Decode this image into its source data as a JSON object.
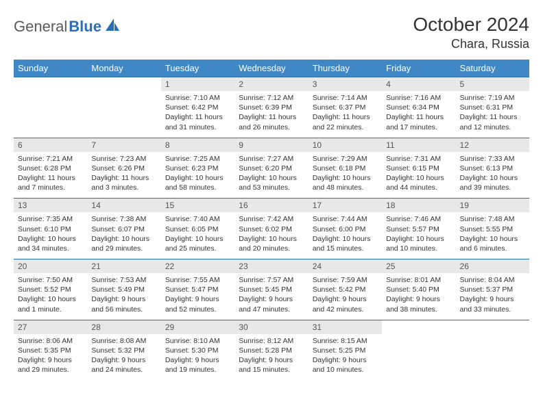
{
  "logo": {
    "part1": "General",
    "part2": "Blue"
  },
  "title": "October 2024",
  "location": "Chara, Russia",
  "colors": {
    "header_bg": "#3f88c5",
    "header_fg": "#ffffff",
    "daynum_bg": "#e8e8e8",
    "daynum_fg": "#555555",
    "border": "#2a6fb5",
    "logo_gray": "#5a5a5a",
    "logo_blue": "#2a6fb5"
  },
  "day_names": [
    "Sunday",
    "Monday",
    "Tuesday",
    "Wednesday",
    "Thursday",
    "Friday",
    "Saturday"
  ],
  "weeks": [
    [
      {
        "n": "",
        "sr": "",
        "ss": "",
        "dl": ""
      },
      {
        "n": "",
        "sr": "",
        "ss": "",
        "dl": ""
      },
      {
        "n": "1",
        "sr": "Sunrise: 7:10 AM",
        "ss": "Sunset: 6:42 PM",
        "dl": "Daylight: 11 hours and 31 minutes."
      },
      {
        "n": "2",
        "sr": "Sunrise: 7:12 AM",
        "ss": "Sunset: 6:39 PM",
        "dl": "Daylight: 11 hours and 26 minutes."
      },
      {
        "n": "3",
        "sr": "Sunrise: 7:14 AM",
        "ss": "Sunset: 6:37 PM",
        "dl": "Daylight: 11 hours and 22 minutes."
      },
      {
        "n": "4",
        "sr": "Sunrise: 7:16 AM",
        "ss": "Sunset: 6:34 PM",
        "dl": "Daylight: 11 hours and 17 minutes."
      },
      {
        "n": "5",
        "sr": "Sunrise: 7:19 AM",
        "ss": "Sunset: 6:31 PM",
        "dl": "Daylight: 11 hours and 12 minutes."
      }
    ],
    [
      {
        "n": "6",
        "sr": "Sunrise: 7:21 AM",
        "ss": "Sunset: 6:28 PM",
        "dl": "Daylight: 11 hours and 7 minutes."
      },
      {
        "n": "7",
        "sr": "Sunrise: 7:23 AM",
        "ss": "Sunset: 6:26 PM",
        "dl": "Daylight: 11 hours and 3 minutes."
      },
      {
        "n": "8",
        "sr": "Sunrise: 7:25 AM",
        "ss": "Sunset: 6:23 PM",
        "dl": "Daylight: 10 hours and 58 minutes."
      },
      {
        "n": "9",
        "sr": "Sunrise: 7:27 AM",
        "ss": "Sunset: 6:20 PM",
        "dl": "Daylight: 10 hours and 53 minutes."
      },
      {
        "n": "10",
        "sr": "Sunrise: 7:29 AM",
        "ss": "Sunset: 6:18 PM",
        "dl": "Daylight: 10 hours and 48 minutes."
      },
      {
        "n": "11",
        "sr": "Sunrise: 7:31 AM",
        "ss": "Sunset: 6:15 PM",
        "dl": "Daylight: 10 hours and 44 minutes."
      },
      {
        "n": "12",
        "sr": "Sunrise: 7:33 AM",
        "ss": "Sunset: 6:13 PM",
        "dl": "Daylight: 10 hours and 39 minutes."
      }
    ],
    [
      {
        "n": "13",
        "sr": "Sunrise: 7:35 AM",
        "ss": "Sunset: 6:10 PM",
        "dl": "Daylight: 10 hours and 34 minutes."
      },
      {
        "n": "14",
        "sr": "Sunrise: 7:38 AM",
        "ss": "Sunset: 6:07 PM",
        "dl": "Daylight: 10 hours and 29 minutes."
      },
      {
        "n": "15",
        "sr": "Sunrise: 7:40 AM",
        "ss": "Sunset: 6:05 PM",
        "dl": "Daylight: 10 hours and 25 minutes."
      },
      {
        "n": "16",
        "sr": "Sunrise: 7:42 AM",
        "ss": "Sunset: 6:02 PM",
        "dl": "Daylight: 10 hours and 20 minutes."
      },
      {
        "n": "17",
        "sr": "Sunrise: 7:44 AM",
        "ss": "Sunset: 6:00 PM",
        "dl": "Daylight: 10 hours and 15 minutes."
      },
      {
        "n": "18",
        "sr": "Sunrise: 7:46 AM",
        "ss": "Sunset: 5:57 PM",
        "dl": "Daylight: 10 hours and 10 minutes."
      },
      {
        "n": "19",
        "sr": "Sunrise: 7:48 AM",
        "ss": "Sunset: 5:55 PM",
        "dl": "Daylight: 10 hours and 6 minutes."
      }
    ],
    [
      {
        "n": "20",
        "sr": "Sunrise: 7:50 AM",
        "ss": "Sunset: 5:52 PM",
        "dl": "Daylight: 10 hours and 1 minute."
      },
      {
        "n": "21",
        "sr": "Sunrise: 7:53 AM",
        "ss": "Sunset: 5:49 PM",
        "dl": "Daylight: 9 hours and 56 minutes."
      },
      {
        "n": "22",
        "sr": "Sunrise: 7:55 AM",
        "ss": "Sunset: 5:47 PM",
        "dl": "Daylight: 9 hours and 52 minutes."
      },
      {
        "n": "23",
        "sr": "Sunrise: 7:57 AM",
        "ss": "Sunset: 5:45 PM",
        "dl": "Daylight: 9 hours and 47 minutes."
      },
      {
        "n": "24",
        "sr": "Sunrise: 7:59 AM",
        "ss": "Sunset: 5:42 PM",
        "dl": "Daylight: 9 hours and 42 minutes."
      },
      {
        "n": "25",
        "sr": "Sunrise: 8:01 AM",
        "ss": "Sunset: 5:40 PM",
        "dl": "Daylight: 9 hours and 38 minutes."
      },
      {
        "n": "26",
        "sr": "Sunrise: 8:04 AM",
        "ss": "Sunset: 5:37 PM",
        "dl": "Daylight: 9 hours and 33 minutes."
      }
    ],
    [
      {
        "n": "27",
        "sr": "Sunrise: 8:06 AM",
        "ss": "Sunset: 5:35 PM",
        "dl": "Daylight: 9 hours and 29 minutes."
      },
      {
        "n": "28",
        "sr": "Sunrise: 8:08 AM",
        "ss": "Sunset: 5:32 PM",
        "dl": "Daylight: 9 hours and 24 minutes."
      },
      {
        "n": "29",
        "sr": "Sunrise: 8:10 AM",
        "ss": "Sunset: 5:30 PM",
        "dl": "Daylight: 9 hours and 19 minutes."
      },
      {
        "n": "30",
        "sr": "Sunrise: 8:12 AM",
        "ss": "Sunset: 5:28 PM",
        "dl": "Daylight: 9 hours and 15 minutes."
      },
      {
        "n": "31",
        "sr": "Sunrise: 8:15 AM",
        "ss": "Sunset: 5:25 PM",
        "dl": "Daylight: 9 hours and 10 minutes."
      },
      {
        "n": "",
        "sr": "",
        "ss": "",
        "dl": ""
      },
      {
        "n": "",
        "sr": "",
        "ss": "",
        "dl": ""
      }
    ]
  ]
}
